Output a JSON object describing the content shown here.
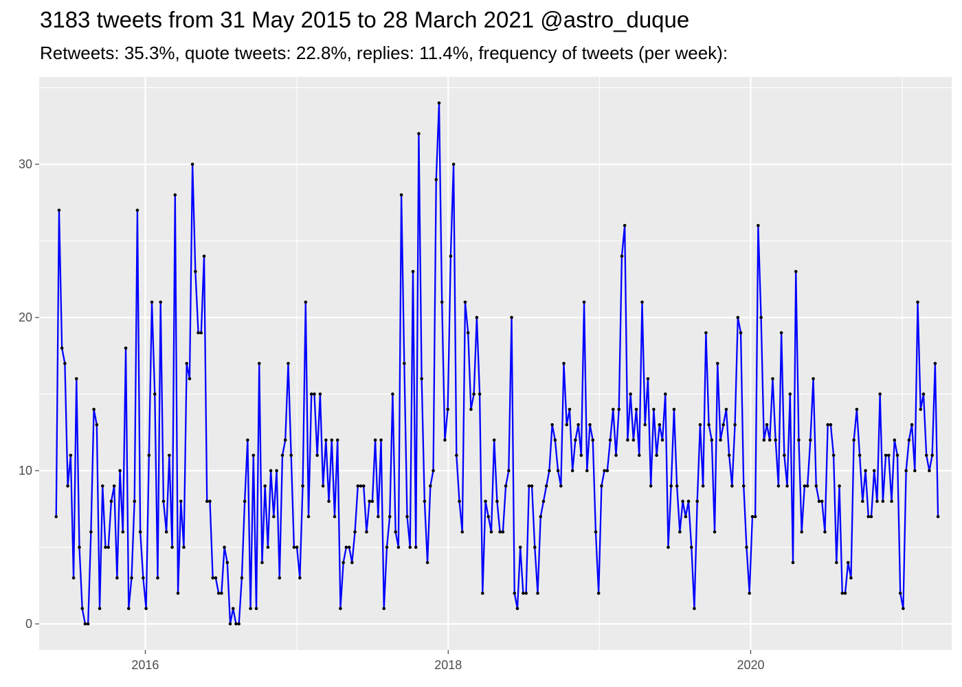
{
  "chart_data": {
    "type": "line",
    "title": "3183 tweets from 31 May 2015 to 28 March 2021 @astro_duque",
    "subtitle": "Retweets: 35.3%, quote tweets: 22.8%, replies: 11.4%, frequency of tweets (per week):",
    "xlabel": "",
    "ylabel": "",
    "xlim": [
      "2015-04-20",
      "2021-04-30"
    ],
    "ylim": [
      -1.7,
      35.7
    ],
    "x_ticks": [
      "2016",
      "2018",
      "2020"
    ],
    "y_ticks": [
      0,
      10,
      20,
      30
    ],
    "grid": true,
    "colors": {
      "line": "#0000ff",
      "point": "#000000",
      "panel": "#ebebeb",
      "grid": "#ffffff"
    },
    "series": [
      {
        "start_date": "2015-05-31",
        "interval_days": 7,
        "values": [
          7,
          27,
          18,
          17,
          9,
          11,
          3,
          16,
          5,
          1,
          0,
          0,
          6,
          14,
          13,
          1,
          9,
          5,
          5,
          8,
          9,
          3,
          10,
          6,
          18,
          1,
          3,
          8,
          27,
          6,
          3,
          1,
          11,
          21,
          15,
          3,
          21,
          8,
          6,
          11,
          5,
          28,
          2,
          8,
          5,
          17,
          16,
          30,
          23,
          19,
          19,
          24,
          8,
          8,
          3,
          3,
          2,
          2,
          5,
          4,
          0,
          1,
          0,
          0,
          3,
          8,
          12,
          1,
          11,
          1,
          17,
          4,
          9,
          5,
          10,
          7,
          10,
          3,
          11,
          12,
          17,
          11,
          5,
          5,
          3,
          9,
          21,
          7,
          15,
          15,
          11,
          15,
          9,
          12,
          8,
          12,
          7,
          12,
          1,
          4,
          5,
          5,
          4,
          6,
          9,
          9,
          9,
          6,
          8,
          8,
          12,
          7,
          12,
          1,
          5,
          7,
          15,
          6,
          5,
          28,
          17,
          7,
          5,
          23,
          5,
          32,
          16,
          8,
          4,
          9,
          10,
          29,
          34,
          21,
          12,
          14,
          24,
          30,
          11,
          8,
          6,
          21,
          19,
          14,
          15,
          20,
          15,
          2,
          8,
          7,
          6,
          12,
          8,
          6,
          6,
          9,
          10,
          20,
          2,
          1,
          5,
          2,
          2,
          9,
          9,
          5,
          2,
          7,
          8,
          9,
          10,
          13,
          12,
          10,
          9,
          17,
          13,
          14,
          10,
          12,
          13,
          11,
          21,
          10,
          13,
          12,
          6,
          2,
          9,
          10,
          10,
          12,
          14,
          11,
          14,
          24,
          26,
          12,
          15,
          12,
          14,
          11,
          21,
          13,
          16,
          9,
          14,
          11,
          13,
          12,
          15,
          5,
          9,
          14,
          9,
          6,
          8,
          7,
          8,
          5,
          1,
          8,
          13,
          9,
          19,
          13,
          12,
          6,
          17,
          12,
          13,
          14,
          11,
          9,
          13,
          20,
          19,
          9,
          5,
          2,
          7,
          7,
          26,
          20,
          12,
          13,
          12,
          16,
          12,
          9,
          19,
          11,
          9,
          15,
          4,
          23,
          12,
          6,
          9,
          9,
          12,
          16,
          9,
          8,
          8,
          6,
          13,
          13,
          11,
          4,
          9,
          2,
          2,
          4,
          3,
          12,
          14,
          11,
          8,
          10,
          7,
          7,
          10,
          8,
          15,
          8,
          11,
          11,
          8,
          12,
          11,
          2,
          1,
          10,
          12,
          13,
          10,
          21,
          14,
          15,
          11,
          10,
          11,
          17,
          7
        ]
      }
    ]
  }
}
